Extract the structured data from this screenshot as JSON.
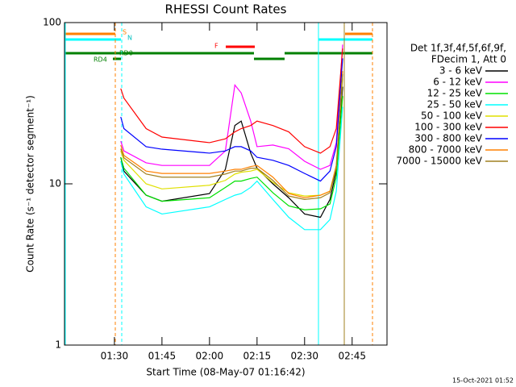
{
  "chart_data": {
    "type": "line",
    "title": "RHESSI Count Rates",
    "x_label": "Start Time (08-May-07 01:16:42)",
    "y_label": "Count Rate (s⁻¹ detector segment⁻¹)",
    "legend_header": [
      "Det 1f,3f,4f,5f,6f,9f,",
      "FDecim 1, Att 0"
    ],
    "footer": "15-Oct-2021 01:52",
    "annotations": [
      "S",
      "N",
      "F",
      "RD0",
      "RD4"
    ],
    "log_y": true,
    "xlim": [
      74.25,
      176
    ],
    "ylim": [
      1,
      100
    ],
    "xticks": [
      {
        "value": 90,
        "label": "01:30"
      },
      {
        "value": 105,
        "label": "01:45"
      },
      {
        "value": 120,
        "label": "02:00"
      },
      {
        "value": 135,
        "label": "02:15"
      },
      {
        "value": 150,
        "label": "02:30"
      },
      {
        "value": 165,
        "label": "02:45"
      }
    ],
    "yticks": [
      1,
      10,
      100
    ],
    "x": [
      92,
      93,
      100,
      105,
      120,
      125,
      128,
      130,
      133,
      135,
      140,
      145,
      150,
      155,
      158,
      160,
      162
    ],
    "series": [
      {
        "name": "3 - 6 keV",
        "color": "#000000",
        "values": [
          14.6,
          12,
          8.5,
          7.8,
          8.7,
          12.3,
          23,
          24.5,
          15.5,
          12.5,
          10,
          8.2,
          6.5,
          6.2,
          8,
          12,
          40
        ]
      },
      {
        "name": "6 - 12 keV",
        "color": "#ff00ff",
        "values": [
          18.4,
          16,
          13.5,
          13,
          13,
          16,
          41,
          36.6,
          24.5,
          17,
          17.4,
          16.5,
          13.8,
          12.3,
          13,
          18,
          73
        ]
      },
      {
        "name": "12 - 25 keV",
        "color": "#00e000",
        "values": [
          14.6,
          12.5,
          8.5,
          7.8,
          8.2,
          9.5,
          10.4,
          10.4,
          10.8,
          11,
          8.8,
          7.3,
          6.9,
          7,
          7.5,
          11,
          35
        ]
      },
      {
        "name": "25 - 50 keV",
        "color": "#00ffff",
        "values": [
          13.8,
          11.5,
          7.2,
          6.5,
          7.2,
          8,
          8.5,
          8.7,
          9.5,
          10.4,
          8,
          6.2,
          5.2,
          5.2,
          6,
          9,
          30
        ]
      },
      {
        "name": "50 - 100 keV",
        "color": "#e0e000",
        "values": [
          16,
          14,
          10,
          9.3,
          9.8,
          10.5,
          11.5,
          11.8,
          12,
          12.3,
          10.2,
          8.8,
          8.4,
          8.5,
          9,
          13,
          45
        ]
      },
      {
        "name": "100 - 300 keV",
        "color": "#ff0000",
        "values": [
          39,
          34,
          22,
          19.5,
          18,
          19,
          21,
          22,
          23,
          24.5,
          23,
          21,
          17,
          15.5,
          17,
          22,
          69
        ]
      },
      {
        "name": "300 - 800 keV",
        "color": "#0000ff",
        "values": [
          26,
          22,
          17,
          16.4,
          15.5,
          16,
          17,
          17,
          16,
          14.6,
          14,
          13,
          11.6,
          10.4,
          12,
          17,
          60
        ]
      },
      {
        "name": "800 - 7000 keV",
        "color": "#ff8000",
        "values": [
          17.4,
          15,
          12,
          11.6,
          11.6,
          12,
          12.3,
          12.3,
          12.8,
          13,
          11,
          8.7,
          8.2,
          8.5,
          9,
          13,
          50
        ]
      },
      {
        "name": "7000 - 15000 keV",
        "color": "#a08020",
        "values": [
          16.5,
          14.5,
          11.5,
          11,
          11,
          11.5,
          12,
          12,
          12.5,
          12.5,
          10.5,
          8.4,
          8,
          8.2,
          8.8,
          12.5,
          48
        ]
      }
    ]
  }
}
